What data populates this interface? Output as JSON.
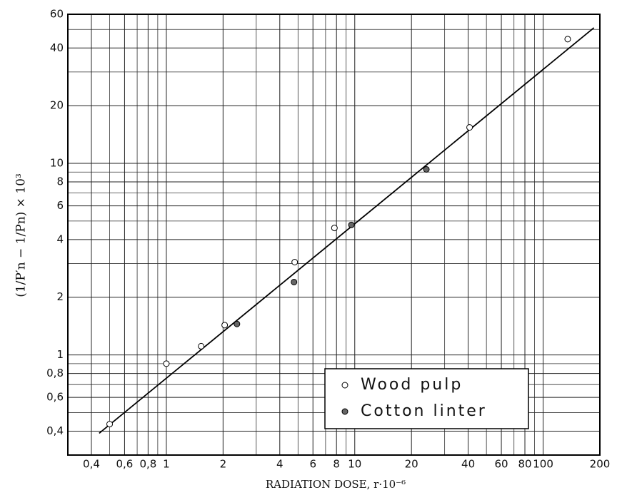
{
  "chart_data": {
    "type": "scatter",
    "xlabel": "RADIATION DOSE, r·10⁻⁶",
    "ylabel": "(1/P′n − 1/Pn) × 10³",
    "xscale": "log",
    "yscale": "log",
    "xlim": [
      0.3,
      200
    ],
    "ylim": [
      0.3,
      60
    ],
    "xticks": [
      {
        "value": 0.4,
        "label": "0,4"
      },
      {
        "value": 0.6,
        "label": "0,6"
      },
      {
        "value": 0.8,
        "label": "0,8"
      },
      1,
      2,
      4,
      6,
      8,
      10,
      20,
      40,
      60,
      80,
      100,
      200
    ],
    "yticks": [
      {
        "value": 0.4,
        "label": "0,4"
      },
      {
        "value": 0.6,
        "label": "0,6"
      },
      {
        "value": 0.8,
        "label": "0,8"
      },
      1,
      2,
      4,
      6,
      8,
      10,
      20,
      40,
      60
    ],
    "minor_xticks": [
      0.5,
      0.7,
      0.9,
      3,
      5,
      7,
      9,
      30,
      50,
      70,
      90
    ],
    "minor_yticks": [
      0.5,
      0.7,
      0.9,
      3,
      5,
      7,
      9,
      30,
      50
    ],
    "grid": true,
    "legend": "lower right",
    "series": [
      {
        "name": "Wood pulp",
        "color": "#ffffff",
        "x": [
          0.5,
          1.0,
          1.53,
          2.04,
          4.8,
          7.8,
          40.7,
          135
        ],
        "y": [
          0.435,
          0.9,
          1.11,
          1.43,
          3.05,
          4.6,
          15.4,
          44.5
        ]
      },
      {
        "name": "Cotton linter",
        "color": "#666666",
        "x": [
          2.37,
          4.76,
          9.6,
          24
        ],
        "y": [
          1.45,
          2.4,
          4.77,
          9.3
        ]
      }
    ],
    "fit_line": {
      "x": [
        0.44,
        186
      ],
      "y": [
        0.39,
        51
      ]
    }
  }
}
